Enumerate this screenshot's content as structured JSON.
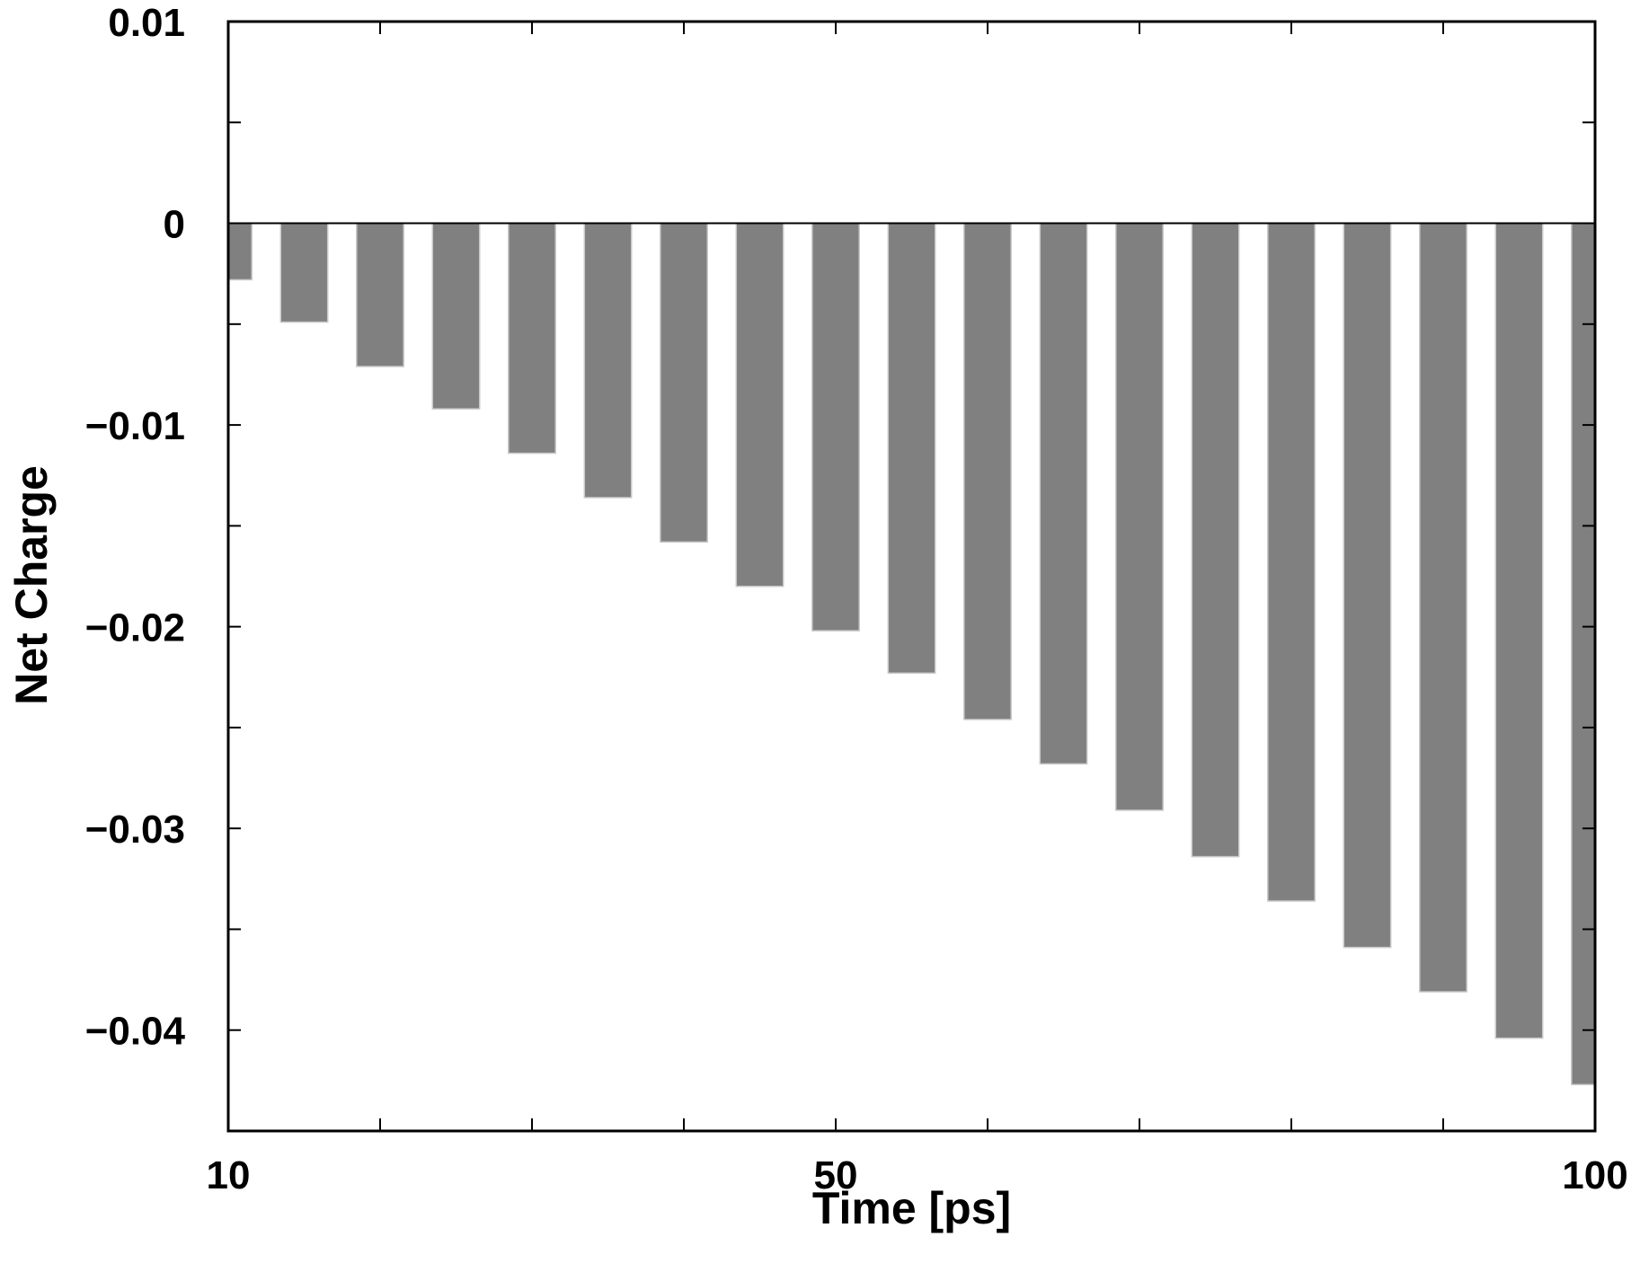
{
  "chart_data": {
    "type": "bar",
    "xlabel": "Time [ps]",
    "ylabel": "Net Charge",
    "x": [
      10,
      15,
      20,
      25,
      30,
      35,
      40,
      45,
      50,
      55,
      60,
      65,
      70,
      75,
      80,
      85,
      90,
      95,
      100
    ],
    "values": [
      -0.0028,
      -0.0049,
      -0.0071,
      -0.0092,
      -0.0114,
      -0.0136,
      -0.0158,
      -0.018,
      -0.0202,
      -0.0223,
      -0.0246,
      -0.0268,
      -0.0291,
      -0.0314,
      -0.0336,
      -0.0359,
      -0.0381,
      -0.0404,
      -0.0427
    ],
    "xlim": [
      10,
      100
    ],
    "ylim": [
      -0.045,
      0.01
    ],
    "xticks": [
      10,
      20,
      30,
      40,
      50,
      60,
      70,
      80,
      90,
      100
    ],
    "xtick_labels": {
      "10": "10",
      "50": "50",
      "100": "100"
    },
    "yticks": [
      0.01,
      0.005,
      0,
      -0.005,
      -0.01,
      -0.015,
      -0.02,
      -0.025,
      -0.03,
      -0.035,
      -0.04
    ],
    "ytick_labels": {
      "0.01": "0.01",
      "0": "0",
      "-0.01": "−0.01",
      "-0.02": "−0.02",
      "-0.03": "−0.03",
      "-0.04": "−0.04"
    },
    "bar_color": "#808080",
    "grid": false,
    "legend": "none"
  }
}
